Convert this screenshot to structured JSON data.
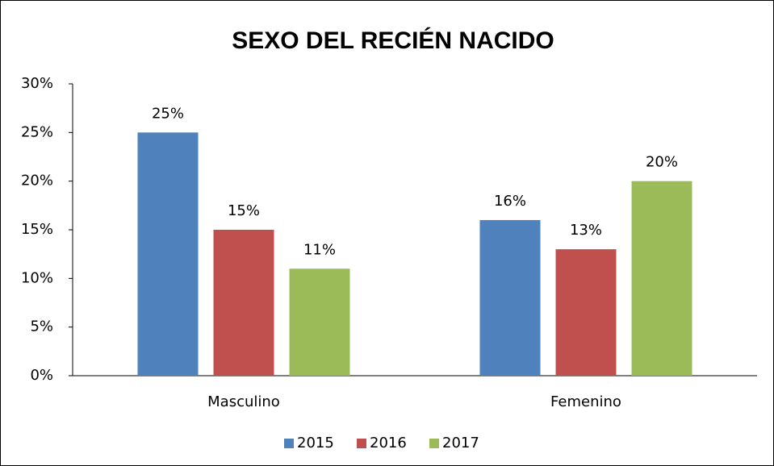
{
  "chart_data": {
    "type": "bar",
    "title": "SEXO DEL RECIÉN NACIDO",
    "categories": [
      "Masculino",
      "Femenino"
    ],
    "series": [
      {
        "name": "2015",
        "color": "#4f81bd",
        "values": [
          25,
          16
        ],
        "value_labels": [
          "25%",
          "16%"
        ]
      },
      {
        "name": "2016",
        "color": "#c0504d",
        "values": [
          15,
          13
        ],
        "value_labels": [
          "15%",
          "13%"
        ]
      },
      {
        "name": "2017",
        "color": "#9bbb59",
        "values": [
          11,
          20
        ],
        "value_labels": [
          "11%",
          "20%"
        ]
      }
    ],
    "ylim": [
      0,
      30
    ],
    "yticks": [
      {
        "value": 0,
        "label": "0%"
      },
      {
        "value": 5,
        "label": "5%"
      },
      {
        "value": 10,
        "label": "10%"
      },
      {
        "value": 15,
        "label": "15%"
      },
      {
        "value": 20,
        "label": "20%"
      },
      {
        "value": 25,
        "label": "25%"
      },
      {
        "value": 30,
        "label": "30%"
      }
    ],
    "grid": false,
    "legend": "bottom"
  }
}
